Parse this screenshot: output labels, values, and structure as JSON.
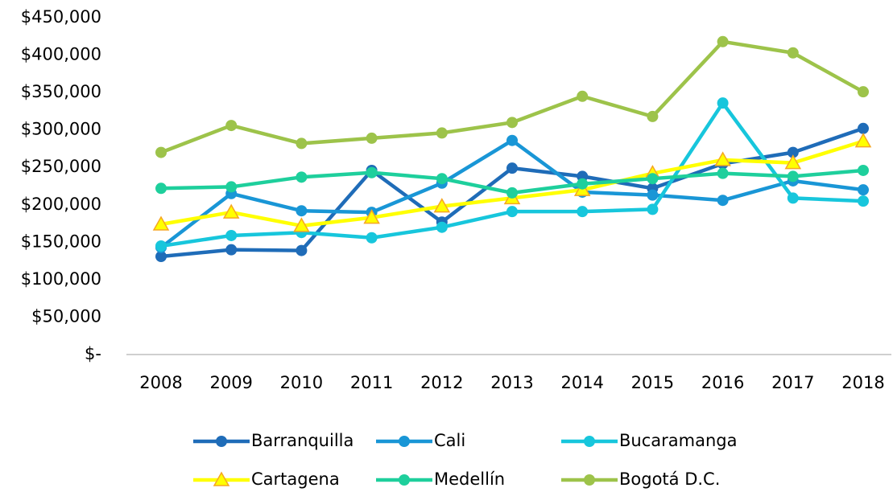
{
  "chart_data": {
    "type": "line",
    "categories": [
      "2008",
      "2009",
      "2010",
      "2011",
      "2012",
      "2013",
      "2014",
      "2015",
      "2016",
      "2017",
      "2018"
    ],
    "ylim": [
      0,
      450000
    ],
    "yticks": [
      {
        "value": 0,
        "label": "$-"
      },
      {
        "value": 50000,
        "label": "$50,000"
      },
      {
        "value": 100000,
        "label": "$100,000"
      },
      {
        "value": 150000,
        "label": "$150,000"
      },
      {
        "value": 200000,
        "label": "$200,000"
      },
      {
        "value": 250000,
        "label": "$250,000"
      },
      {
        "value": 300000,
        "label": "$300,000"
      },
      {
        "value": 350000,
        "label": "$350,000"
      },
      {
        "value": 400000,
        "label": "$400,000"
      },
      {
        "value": 450000,
        "label": "$450,000"
      }
    ],
    "grid": false,
    "legend": "bottom",
    "series": [
      {
        "name": "Barranquilla",
        "color": "#1f6cb8",
        "marker": "circle",
        "values": [
          131000,
          140000,
          139000,
          246000,
          177000,
          249000,
          238000,
          222000,
          255000,
          270000,
          302000
        ]
      },
      {
        "name": "Cali",
        "color": "#1996d6",
        "marker": "circle",
        "values": [
          143000,
          215000,
          192000,
          190000,
          229000,
          286000,
          217000,
          213000,
          206000,
          232000,
          220000
        ]
      },
      {
        "name": "Bucaramanga",
        "color": "#17c6dc",
        "marker": "circle",
        "values": [
          145000,
          159000,
          163000,
          156000,
          170000,
          191000,
          191000,
          194000,
          336000,
          209000,
          205000
        ]
      },
      {
        "name": "Cartagena",
        "color": "#ffff00",
        "marker": "triangle",
        "values": [
          174000,
          190000,
          172000,
          183000,
          198000,
          209000,
          220000,
          242000,
          260000,
          256000,
          285000
        ]
      },
      {
        "name": "Medellín",
        "color": "#1ecf9c",
        "marker": "circle",
        "values": [
          222000,
          224000,
          237000,
          243000,
          235000,
          216000,
          228000,
          235000,
          242000,
          238000,
          246000
        ]
      },
      {
        "name": "Bogotá D.C.",
        "color": "#9dc34a",
        "marker": "circle",
        "values": [
          270000,
          306000,
          282000,
          289000,
          296000,
          310000,
          345000,
          318000,
          418000,
          403000,
          351000
        ]
      }
    ]
  }
}
